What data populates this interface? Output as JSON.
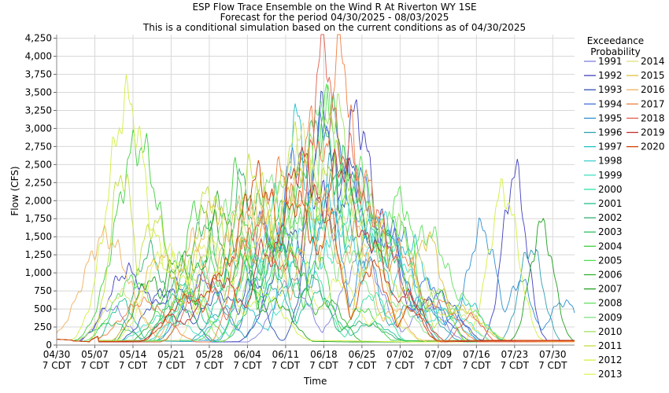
{
  "chart_data": {
    "type": "line",
    "title": "ESP Flow Trace Ensemble on the Wind R At Riverton WY 1SE",
    "subtitle": "Forecast for the period 04/30/2025 - 08/03/2025",
    "subtitle2": "This is a conditional simulation based on the current conditions as of 04/30/2025",
    "xlabel": "Time",
    "ylabel": "Flow (CFS)",
    "ylim": [
      0,
      4300
    ],
    "yticks": [
      0,
      250,
      500,
      750,
      1000,
      1250,
      1500,
      1750,
      2000,
      2250,
      2500,
      2750,
      3000,
      3250,
      3500,
      3750,
      4000,
      4250
    ],
    "ytick_labels": [
      "0",
      "250",
      "500",
      "750",
      "1,000",
      "1,250",
      "1,500",
      "1,750",
      "2,000",
      "2,250",
      "2,500",
      "2,750",
      "3,000",
      "3,250",
      "3,500",
      "3,750",
      "4,000",
      "4,250"
    ],
    "xlim_days": [
      0,
      95
    ],
    "xticks": [
      {
        "day": 0,
        "line1": "04/30",
        "line2": "7 CDT"
      },
      {
        "day": 7,
        "line1": "05/07",
        "line2": "7 CDT"
      },
      {
        "day": 14,
        "line1": "05/14",
        "line2": "7 CDT"
      },
      {
        "day": 21,
        "line1": "05/21",
        "line2": "7 CDT"
      },
      {
        "day": 28,
        "line1": "05/28",
        "line2": "7 CDT"
      },
      {
        "day": 35,
        "line1": "06/04",
        "line2": "7 CDT"
      },
      {
        "day": 42,
        "line1": "06/11",
        "line2": "7 CDT"
      },
      {
        "day": 49,
        "line1": "06/18",
        "line2": "7 CDT"
      },
      {
        "day": 56,
        "line1": "06/25",
        "line2": "7 CDT"
      },
      {
        "day": 63,
        "line1": "07/02",
        "line2": "7 CDT"
      },
      {
        "day": 70,
        "line1": "07/09",
        "line2": "7 CDT"
      },
      {
        "day": 77,
        "line1": "07/16",
        "line2": "7 CDT"
      },
      {
        "day": 84,
        "line1": "07/23",
        "line2": "7 CDT"
      },
      {
        "day": 91,
        "line1": "07/30",
        "line2": "7 CDT"
      }
    ],
    "grid": true,
    "legend_title_line1": "Exceedance",
    "legend_title_line2": "Probability",
    "legend_position": "right",
    "series": [
      {
        "name": "1991",
        "color": "#8080e0",
        "peaks": [
          [
            10,
            520
          ],
          [
            12,
            300
          ],
          [
            43,
            900
          ],
          [
            56,
            1200
          ],
          [
            68,
            500
          ]
        ]
      },
      {
        "name": "1992",
        "color": "#4040c0",
        "peaks": [
          [
            13,
            1020
          ],
          [
            16,
            700
          ],
          [
            22,
            850
          ],
          [
            43,
            1500
          ],
          [
            48,
            2100
          ],
          [
            55,
            3180
          ],
          [
            60,
            1500
          ],
          [
            68,
            600
          ],
          [
            84,
            2370
          ]
        ]
      },
      {
        "name": "1993",
        "color": "#3050b0",
        "peaks": [
          [
            20,
            750
          ],
          [
            30,
            700
          ],
          [
            36,
            900
          ],
          [
            49,
            3180
          ],
          [
            54,
            2400
          ],
          [
            60,
            1700
          ],
          [
            70,
            700
          ]
        ]
      },
      {
        "name": "1994",
        "color": "#4070e0",
        "peaks": [
          [
            27,
            900
          ],
          [
            38,
            1750
          ],
          [
            44,
            2650
          ],
          [
            50,
            3150
          ],
          [
            55,
            2350
          ],
          [
            61,
            1600
          ],
          [
            68,
            900
          ],
          [
            73,
            400
          ]
        ]
      },
      {
        "name": "1995",
        "color": "#3090d0",
        "peaks": [
          [
            35,
            1100
          ],
          [
            42,
            1500
          ],
          [
            50,
            2200
          ],
          [
            58,
            1700
          ],
          [
            63,
            1550
          ],
          [
            78,
            1600
          ],
          [
            85,
            900
          ],
          [
            93,
            600
          ]
        ]
      },
      {
        "name": "1996",
        "color": "#30a0b0",
        "peaks": [
          [
            30,
            450
          ],
          [
            40,
            800
          ],
          [
            51,
            2450
          ],
          [
            57,
            1200
          ],
          [
            66,
            600
          ],
          [
            87,
            1350
          ]
        ]
      },
      {
        "name": "1997",
        "color": "#20c0c8",
        "peaks": [
          [
            33,
            600
          ],
          [
            44,
            3100
          ],
          [
            50,
            2000
          ],
          [
            56,
            1700
          ],
          [
            65,
            1400
          ],
          [
            75,
            600
          ]
        ]
      },
      {
        "name": "1998",
        "color": "#40d0d0",
        "peaks": [
          [
            25,
            700
          ],
          [
            40,
            1550
          ],
          [
            46,
            2000
          ],
          [
            52,
            1800
          ],
          [
            60,
            1700
          ],
          [
            70,
            500
          ]
        ]
      },
      {
        "name": "1999",
        "color": "#40e0c0",
        "peaks": [
          [
            20,
            400
          ],
          [
            36,
            1300
          ],
          [
            47,
            1800
          ],
          [
            55,
            2000
          ],
          [
            62,
            1300
          ],
          [
            72,
            500
          ]
        ]
      },
      {
        "name": "2000",
        "color": "#30e0a0",
        "peaks": [
          [
            26,
            1100
          ],
          [
            34,
            1400
          ],
          [
            40,
            2000
          ],
          [
            46,
            1100
          ],
          [
            58,
            700
          ]
        ]
      },
      {
        "name": "2001",
        "color": "#20c090",
        "peaks": [
          [
            12,
            600
          ],
          [
            23,
            800
          ],
          [
            33,
            1200
          ],
          [
            40,
            1000
          ],
          [
            48,
            700
          ],
          [
            58,
            300
          ]
        ]
      },
      {
        "name": "2002",
        "color": "#30b070",
        "peaks": [
          [
            17,
            1300
          ],
          [
            27,
            1700
          ],
          [
            34,
            2300
          ],
          [
            40,
            1450
          ],
          [
            47,
            900
          ],
          [
            56,
            300
          ]
        ]
      },
      {
        "name": "2003",
        "color": "#30c060",
        "peaks": [
          [
            10,
            300
          ],
          [
            22,
            600
          ],
          [
            40,
            1350
          ],
          [
            48,
            3000
          ],
          [
            53,
            2500
          ],
          [
            60,
            1500
          ],
          [
            66,
            500
          ]
        ]
      },
      {
        "name": "2004",
        "color": "#40d040",
        "peaks": [
          [
            15,
            2780
          ],
          [
            18,
            1700
          ],
          [
            26,
            1950
          ],
          [
            33,
            2350
          ],
          [
            41,
            1800
          ],
          [
            48,
            1200
          ],
          [
            56,
            500
          ]
        ]
      },
      {
        "name": "2005",
        "color": "#50e050",
        "peaks": [
          [
            14,
            900
          ],
          [
            24,
            700
          ],
          [
            35,
            1100
          ],
          [
            44,
            2000
          ],
          [
            50,
            3550
          ],
          [
            56,
            2200
          ],
          [
            63,
            2050
          ],
          [
            70,
            700
          ]
        ]
      },
      {
        "name": "2006",
        "color": "#30b030",
        "peaks": [
          [
            24,
            1200
          ],
          [
            30,
            1950
          ],
          [
            36,
            2050
          ],
          [
            43,
            1200
          ],
          [
            50,
            600
          ]
        ]
      },
      {
        "name": "2007",
        "color": "#20a020",
        "peaks": [
          [
            17,
            900
          ],
          [
            22,
            1200
          ],
          [
            29,
            1700
          ],
          [
            34,
            1300
          ],
          [
            40,
            600
          ],
          [
            89,
            1650
          ]
        ]
      },
      {
        "name": "2008",
        "color": "#60e060",
        "peaks": [
          [
            35,
            1200
          ],
          [
            43,
            1800
          ],
          [
            49,
            3450
          ],
          [
            55,
            2400
          ],
          [
            62,
            1750
          ],
          [
            68,
            1550
          ],
          [
            73,
            700
          ]
        ]
      },
      {
        "name": "2009",
        "color": "#80e080",
        "peaks": [
          [
            23,
            1200
          ],
          [
            32,
            1900
          ],
          [
            40,
            2250
          ],
          [
            47,
            2000
          ],
          [
            54,
            1300
          ],
          [
            62,
            600
          ]
        ]
      },
      {
        "name": "2010",
        "color": "#a0e060",
        "peaks": [
          [
            25,
            900
          ],
          [
            38,
            2000
          ],
          [
            46,
            2650
          ],
          [
            51,
            3300
          ],
          [
            57,
            1900
          ],
          [
            63,
            1650
          ],
          [
            70,
            800
          ]
        ]
      },
      {
        "name": "2011",
        "color": "#c0e040",
        "peaks": [
          [
            12,
            2400
          ],
          [
            18,
            1700
          ],
          [
            28,
            2100
          ],
          [
            36,
            2400
          ],
          [
            44,
            2800
          ],
          [
            51,
            2600
          ],
          [
            58,
            1800
          ],
          [
            65,
            900
          ],
          [
            74,
            500
          ]
        ]
      },
      {
        "name": "2012",
        "color": "#d0f040",
        "peaks": [
          [
            13,
            3360
          ],
          [
            16,
            1700
          ],
          [
            22,
            1200
          ],
          [
            30,
            1000
          ],
          [
            38,
            700
          ],
          [
            82,
            2130
          ]
        ]
      },
      {
        "name": "2013",
        "color": "#e0f060",
        "peaks": [
          [
            20,
            1300
          ],
          [
            28,
            1400
          ],
          [
            37,
            1500
          ],
          [
            44,
            1350
          ],
          [
            52,
            900
          ],
          [
            60,
            400
          ]
        ]
      },
      {
        "name": "2014",
        "color": "#e0e080",
        "peaks": [
          [
            12,
            700
          ],
          [
            28,
            1450
          ],
          [
            37,
            2000
          ],
          [
            45,
            2800
          ],
          [
            50,
            2000
          ],
          [
            58,
            1700
          ],
          [
            66,
            1200
          ],
          [
            72,
            500
          ]
        ]
      },
      {
        "name": "2015",
        "color": "#e0c040",
        "peaks": [
          [
            19,
            1200
          ],
          [
            29,
            1900
          ],
          [
            37,
            1800
          ],
          [
            44,
            2300
          ],
          [
            50,
            1700
          ],
          [
            58,
            1300
          ],
          [
            68,
            1500
          ],
          [
            74,
            500
          ]
        ]
      },
      {
        "name": "2016",
        "color": "#f0b060",
        "peaks": [
          [
            9,
            1500
          ],
          [
            12,
            700
          ],
          [
            25,
            1450
          ],
          [
            34,
            1900
          ],
          [
            40,
            1250
          ],
          [
            48,
            2150
          ],
          [
            55,
            1600
          ],
          [
            62,
            500
          ]
        ]
      },
      {
        "name": "2017",
        "color": "#f08040",
        "peaks": [
          [
            16,
            600
          ],
          [
            34,
            1500
          ],
          [
            41,
            2350
          ],
          [
            47,
            3050
          ],
          [
            52,
            4100
          ],
          [
            56,
            2300
          ],
          [
            63,
            1300
          ],
          [
            70,
            600
          ]
        ]
      },
      {
        "name": "2018",
        "color": "#e06050",
        "peaks": [
          [
            27,
            900
          ],
          [
            37,
            1700
          ],
          [
            43,
            1200
          ],
          [
            49,
            4130
          ],
          [
            53,
            2700
          ],
          [
            58,
            1850
          ],
          [
            64,
            700
          ],
          [
            76,
            400
          ]
        ]
      },
      {
        "name": "2019",
        "color": "#c03030",
        "peaks": [
          [
            21,
            400
          ],
          [
            30,
            900
          ],
          [
            38,
            1350
          ],
          [
            45,
            2550
          ],
          [
            52,
            2500
          ],
          [
            57,
            1500
          ],
          [
            64,
            700
          ]
        ]
      },
      {
        "name": "2020",
        "color": "#d04000",
        "peaks": [
          [
            24,
            650
          ],
          [
            31,
            1100
          ],
          [
            37,
            2300
          ],
          [
            44,
            2000
          ],
          [
            50,
            1750
          ],
          [
            58,
            1100
          ],
          [
            65,
            500
          ]
        ]
      }
    ]
  }
}
